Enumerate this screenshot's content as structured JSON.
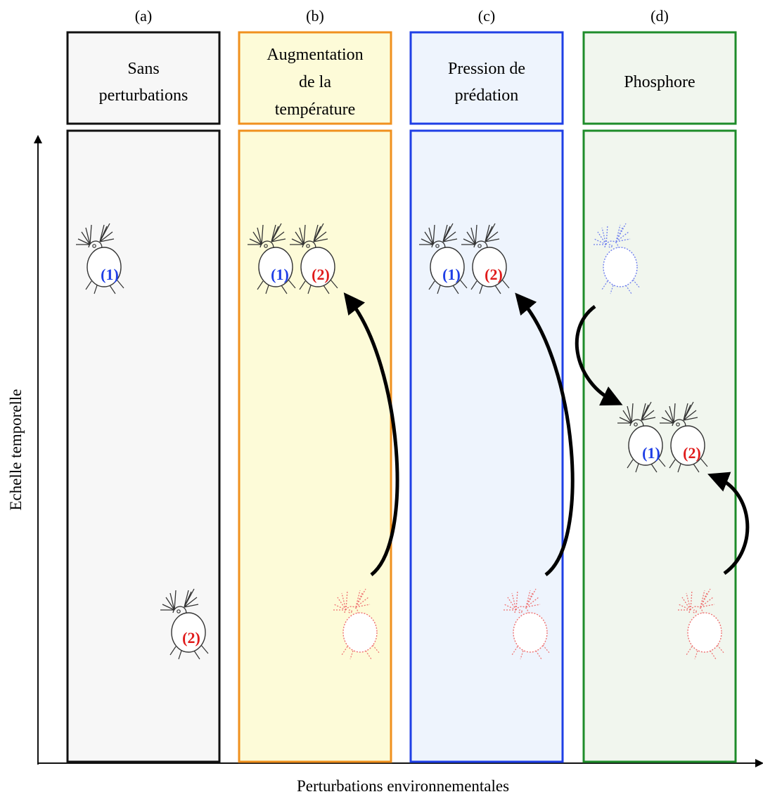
{
  "axes": {
    "y_label": "Echelle temporelle",
    "x_label": "Perturbations environnementales"
  },
  "columns": [
    {
      "letter": "(a)",
      "title_lines": [
        "Sans",
        "perturbations"
      ],
      "border": "#111111",
      "fill": "#f7f7f7"
    },
    {
      "letter": "(b)",
      "title_lines": [
        "Augmentation",
        "de la",
        "température"
      ],
      "border": "#f0901e",
      "fill": "#fdfbd8"
    },
    {
      "letter": "(c)",
      "title_lines": [
        "Pression de",
        "prédation"
      ],
      "border": "#1f3fe6",
      "fill": "#eef4fd"
    },
    {
      "letter": "(d)",
      "title_lines": [
        "Phosphore"
      ],
      "border": "#1e8c2a",
      "fill": "#f1f6ee"
    }
  ],
  "labels": {
    "clone_1": "(1)",
    "clone_2": "(2)"
  },
  "colors": {
    "clone_1": "#1f3fe6",
    "clone_2": "#e01b1b",
    "outline": "#333333",
    "ghost_1": "#6f7fee",
    "ghost_2": "#ee7070",
    "arrow": "#000000"
  },
  "icons": {
    "organism": "daphnia-icon",
    "arrow": "curved-arrow-icon"
  }
}
